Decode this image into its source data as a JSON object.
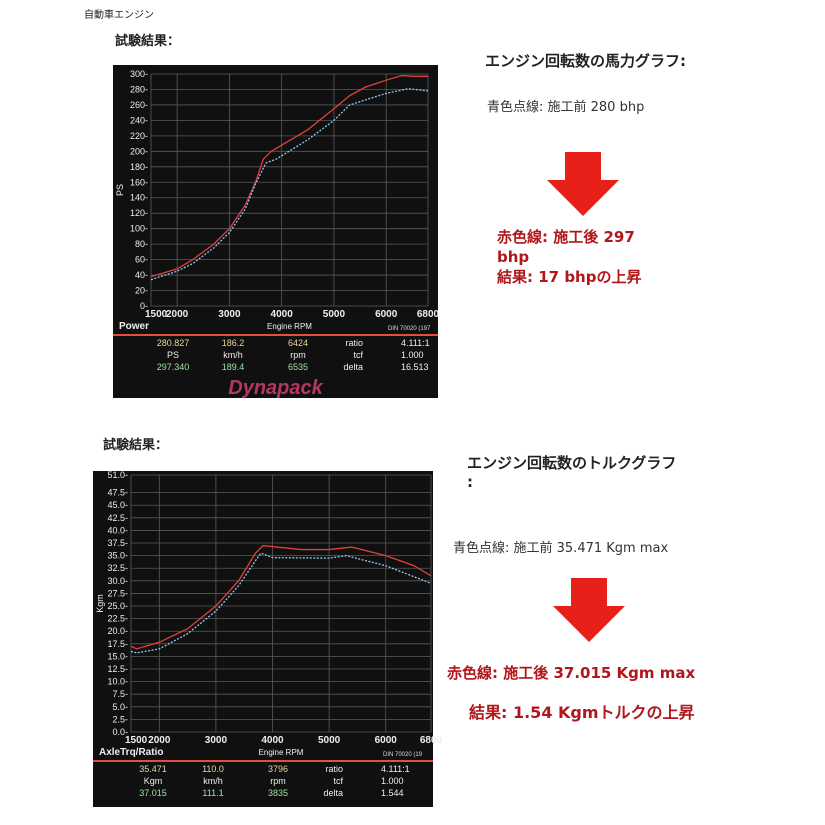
{
  "header": "自動車エンジン",
  "power_section": {
    "result_label": "試験結果：",
    "title": "エンジン回転数の馬力グラフ:",
    "before": "青色点線:  施工前    280 bhp",
    "after_line1": "赤色線:     施工後    297",
    "after_line2": "bhp",
    "result": "結果: 17 bhpの上昇"
  },
  "torque_section": {
    "result_label": "試験結果：",
    "title_line1": "エンジン回転数のトルクグラフ",
    "title_line2": ":",
    "before": "青色点線: 施工前     35.471 Kgm max",
    "after": "赤色線:     施工後     37.015 Kgm max",
    "result": "結果: 1.54 Kgmトルクの上昇"
  },
  "colors": {
    "after": "#e0403c",
    "before": "#8fc8ee",
    "arrow": "#e8201a",
    "plot_bg": "#101010"
  },
  "chart_data": [
    {
      "type": "line",
      "ylabel": "PS",
      "xlabel": "Engine RPM",
      "panel_label": "Power",
      "standard": "DIN 70020 (197",
      "xlim": [
        1500,
        6800
      ],
      "ylim": [
        0,
        300
      ],
      "grid": true,
      "xticks": [
        1500,
        2000,
        3000,
        4000,
        5000,
        6000,
        6800
      ],
      "yticks": [
        0,
        20,
        40,
        60,
        80,
        100,
        120,
        140,
        160,
        180,
        200,
        220,
        240,
        260,
        280,
        300
      ],
      "series": [
        {
          "style": "red-solid",
          "x": [
            1500,
            2000,
            2300,
            2700,
            3000,
            3300,
            3500,
            3650,
            3800,
            4000,
            4500,
            5000,
            5300,
            5600,
            6000,
            6300,
            6535,
            6800
          ],
          "y": [
            38,
            48,
            60,
            80,
            100,
            130,
            160,
            190,
            200,
            208,
            228,
            255,
            272,
            283,
            292,
            298,
            297,
            297
          ]
        },
        {
          "style": "blue-dotted",
          "x": [
            1500,
            2000,
            2300,
            2700,
            3000,
            3300,
            3500,
            3700,
            3900,
            4500,
            5000,
            5300,
            6000,
            6424,
            6800
          ],
          "y": [
            34,
            45,
            55,
            75,
            95,
            125,
            158,
            185,
            190,
            215,
            240,
            260,
            275,
            281,
            278
          ]
        }
      ],
      "readout": {
        "row1": [
          "280.827",
          "186.2",
          "6424",
          "ratio",
          "4.111:1"
        ],
        "units": [
          "PS",
          "km/h",
          "rpm",
          "tcf",
          "1.000"
        ],
        "row2": [
          "297.340",
          "189.4",
          "6535",
          "delta",
          "16.513"
        ]
      },
      "logo": "Dynapack"
    },
    {
      "type": "line",
      "ylabel": "Kgm",
      "xlabel": "Engine RPM",
      "panel_label": "AxleTrq/Ratio",
      "standard": "DIN 70020 (19",
      "xlim": [
        1500,
        6800
      ],
      "ylim": [
        0,
        51
      ],
      "grid": true,
      "xticks": [
        1500,
        2000,
        3000,
        4000,
        5000,
        6000,
        6800
      ],
      "yticks": [
        0,
        2.5,
        5,
        7.5,
        10,
        12.5,
        15,
        17.5,
        20,
        22.5,
        25,
        27.5,
        30,
        32.5,
        35,
        37.5,
        40,
        42.5,
        45,
        47.5,
        51
      ],
      "series": [
        {
          "style": "red-solid",
          "x": [
            1500,
            1600,
            2000,
            2500,
            3000,
            3400,
            3700,
            3835,
            4500,
            5000,
            5400,
            6000,
            6500,
            6800
          ],
          "y": [
            17,
            16.5,
            17.8,
            20.5,
            25,
            30,
            35.5,
            37,
            36.2,
            36.2,
            36.7,
            35,
            33,
            31
          ]
        },
        {
          "style": "blue-dotted",
          "x": [
            1500,
            1600,
            2000,
            2500,
            3000,
            3400,
            3700,
            3796,
            4000,
            5000,
            5300,
            6000,
            6800
          ],
          "y": [
            16,
            15.7,
            16.5,
            19.5,
            24,
            29,
            34,
            35.5,
            34.6,
            34.5,
            35,
            33,
            29.5
          ]
        }
      ],
      "readout": {
        "row1": [
          "35.471",
          "110.0",
          "3796",
          "ratio",
          "4.111:1"
        ],
        "units": [
          "Kgm",
          "km/h",
          "rpm",
          "tcf",
          "1.000"
        ],
        "row2": [
          "37.015",
          "111.1",
          "3835",
          "delta",
          "1.544"
        ]
      }
    }
  ]
}
